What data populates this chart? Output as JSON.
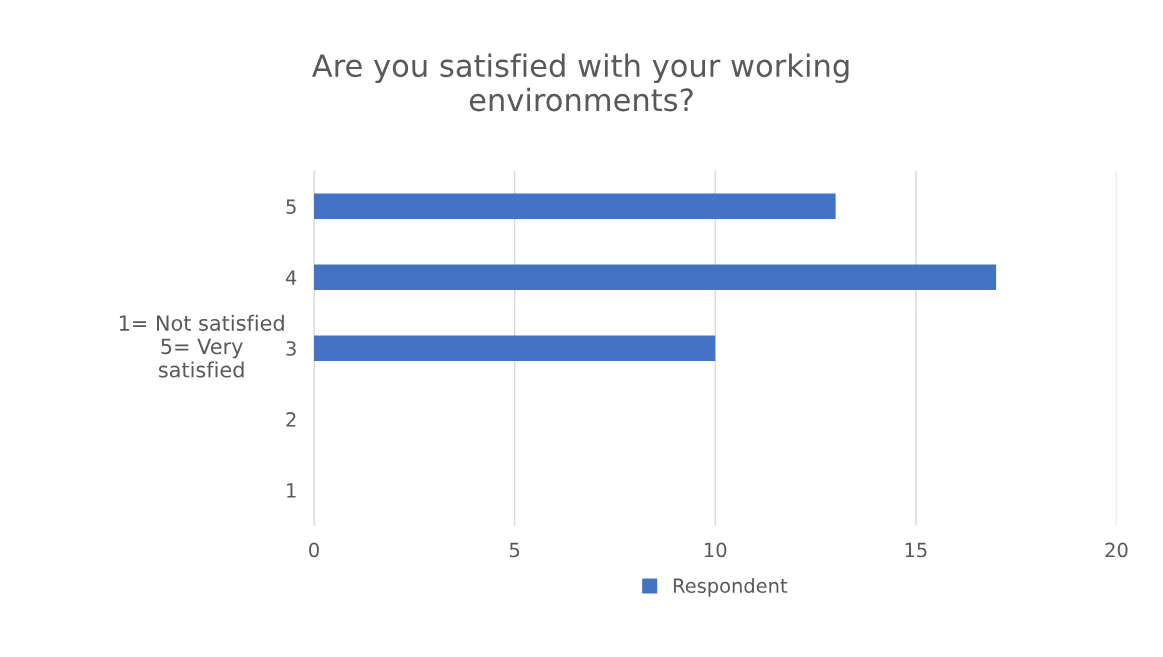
{
  "chart_data": {
    "type": "bar",
    "orientation": "horizontal",
    "title": "Are you satisfied with your working\nenvironments?",
    "ylabel": "1= Not satisfied\n5= Very\nsatisfied",
    "categories": [
      "5",
      "4",
      "3",
      "2",
      "1"
    ],
    "series": [
      {
        "name": "Respondent",
        "color": "#4472c4",
        "values": [
          13,
          17,
          10,
          0,
          0
        ]
      }
    ],
    "xlim": [
      0,
      20
    ],
    "xticks": [
      0,
      5,
      10,
      15,
      20
    ],
    "grid": "x",
    "legend": "bottom"
  }
}
